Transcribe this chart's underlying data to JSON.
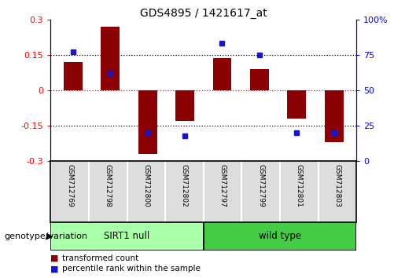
{
  "title": "GDS4895 / 1421617_at",
  "samples": [
    "GSM712769",
    "GSM712798",
    "GSM712800",
    "GSM712802",
    "GSM712797",
    "GSM712799",
    "GSM712801",
    "GSM712803"
  ],
  "bar_values": [
    0.12,
    0.27,
    -0.27,
    -0.13,
    0.135,
    0.09,
    -0.12,
    -0.22
  ],
  "percentile_values": [
    77,
    62,
    20,
    18,
    83,
    75,
    20,
    20
  ],
  "bar_color": "#8B0000",
  "dot_color": "#1515CC",
  "ylim_left": [
    -0.3,
    0.3
  ],
  "ylim_right": [
    0,
    100
  ],
  "yticks_left": [
    -0.3,
    -0.15,
    0,
    0.15,
    0.3
  ],
  "yticks_right": [
    0,
    25,
    50,
    75,
    100
  ],
  "group1_label": "SIRT1 null",
  "group2_label": "wild type",
  "group1_color": "#AAFFAA",
  "group2_color": "#44CC44",
  "genotype_label": "genotype/variation",
  "legend_bar_label": "transformed count",
  "legend_dot_label": "percentile rank within the sample",
  "bar_width": 0.5,
  "title_fontsize": 10,
  "tick_fontsize": 8,
  "sample_fontsize": 6.5,
  "group_fontsize": 8.5,
  "legend_fontsize": 7.5,
  "genotype_fontsize": 8
}
